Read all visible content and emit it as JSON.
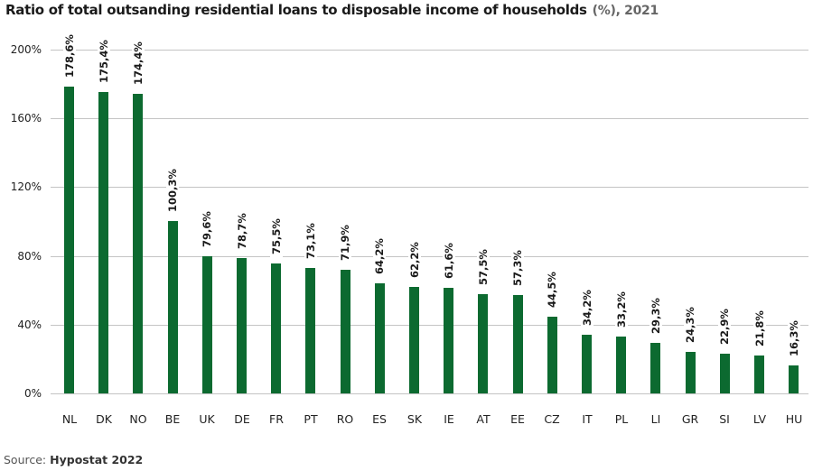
{
  "header": {
    "title": "Ratio of total outsanding residential loans to disposable income of households",
    "unit_note": "(%), 2021"
  },
  "source": {
    "prefix": "Source:",
    "name": "Hypostat 2022"
  },
  "colors": {
    "bar": "#0c6a30",
    "grid": "#c4c4c4"
  },
  "chart_data": {
    "type": "bar",
    "title": "Ratio of total outsanding residential loans to disposable income of households (%), 2021",
    "xlabel": "",
    "ylabel": "",
    "ylim": [
      0,
      200
    ],
    "yticks": [
      "0%",
      "40%",
      "80%",
      "120%",
      "160%",
      "200%"
    ],
    "grid": true,
    "legend": null,
    "categories": [
      "NL",
      "DK",
      "NO",
      "BE",
      "UK",
      "DE",
      "FR",
      "PT",
      "RO",
      "ES",
      "SK",
      "IE",
      "AT",
      "EE",
      "CZ",
      "IT",
      "PL",
      "LI",
      "GR",
      "SI",
      "LV",
      "HU"
    ],
    "values": [
      178.6,
      175.4,
      174.4,
      100.3,
      79.6,
      78.7,
      75.5,
      73.1,
      71.9,
      64.2,
      62.2,
      61.6,
      57.5,
      57.3,
      44.5,
      34.2,
      33.2,
      29.3,
      24.3,
      22.9,
      21.8,
      16.3
    ],
    "data_labels": [
      "178,6%",
      "175,4%",
      "174,4%",
      "100,3%",
      "79,6%",
      "78,7%",
      "75,5%",
      "73,1%",
      "71,9%",
      "64,2%",
      "62,2%",
      "61,6%",
      "57,5%",
      "57,3%",
      "44,5%",
      "34,2%",
      "33,2%",
      "29,3%",
      "24,3%",
      "22,9%",
      "21,8%",
      "16,3%"
    ]
  }
}
